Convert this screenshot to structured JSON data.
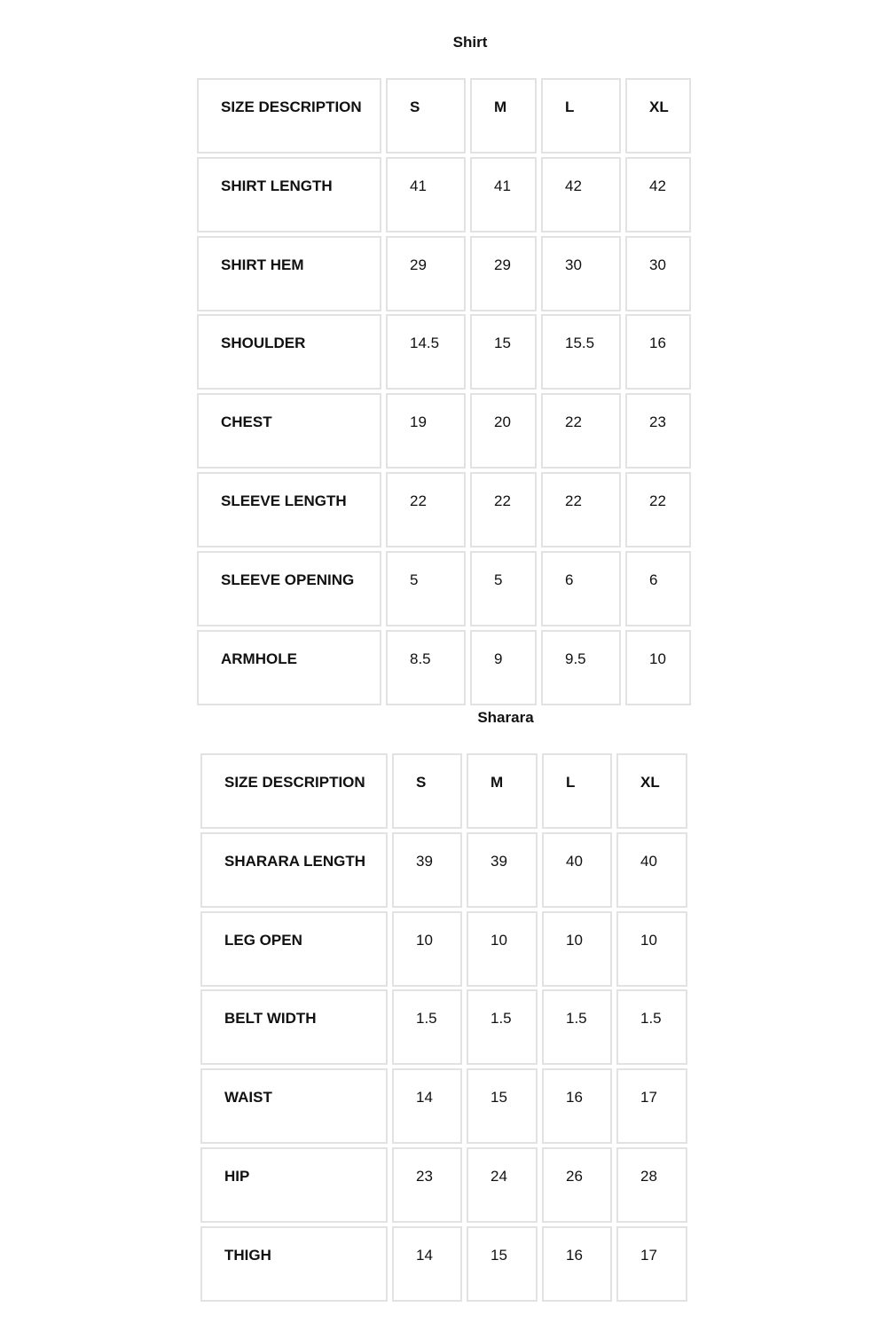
{
  "tables": [
    {
      "title": "Shirt",
      "header": [
        "SIZE DESCRIPTION",
        "S",
        "M",
        "L",
        "XL"
      ],
      "rows": [
        [
          "SHIRT LENGTH",
          "41",
          "41",
          "42",
          "42"
        ],
        [
          "SHIRT HEM",
          "29",
          "29",
          "30",
          "30"
        ],
        [
          "SHOULDER",
          "14.5",
          "15",
          "15.5",
          "16"
        ],
        [
          "CHEST",
          "19",
          "20",
          "22",
          "23"
        ],
        [
          "SLEEVE LENGTH",
          "22",
          "22",
          "22",
          "22"
        ],
        [
          "SLEEVE OPENING",
          "5",
          "5",
          "6",
          "6"
        ],
        [
          "ARMHOLE",
          "8.5",
          "9",
          "9.5",
          "10"
        ]
      ]
    },
    {
      "title": "Sharara",
      "header": [
        "SIZE DESCRIPTION",
        "S",
        "M",
        "L",
        "XL"
      ],
      "rows": [
        [
          "SHARARA LENGTH",
          "39",
          "39",
          "40",
          "40"
        ],
        [
          "LEG OPEN",
          "10",
          "10",
          "10",
          "10"
        ],
        [
          "BELT WIDTH",
          "1.5",
          "1.5",
          "1.5",
          "1.5"
        ],
        [
          "WAIST",
          "14",
          "15",
          "16",
          "17"
        ],
        [
          "HIP",
          "23",
          "24",
          "26",
          "28"
        ],
        [
          "THIGH",
          "14",
          "15",
          "16",
          "17"
        ]
      ]
    }
  ]
}
